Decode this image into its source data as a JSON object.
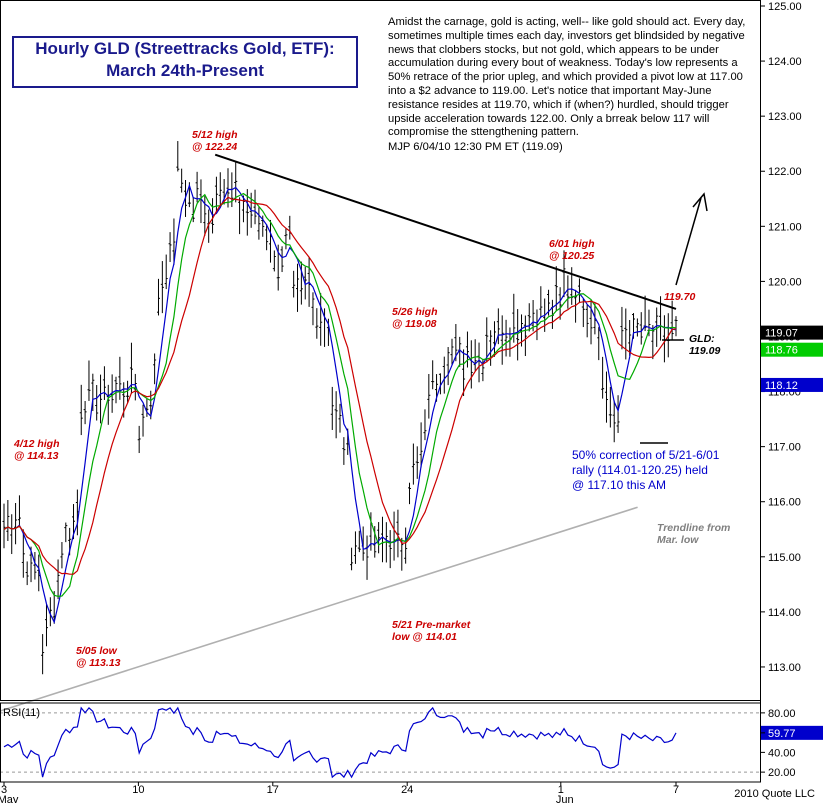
{
  "title": {
    "line1": "Hourly GLD (Streettracks Gold, ETF):",
    "line2": "March 24th-Present"
  },
  "commentary": {
    "text": "Amidst the carnage, gold is acting, well-- like gold should act.  Every day, sometimes multiple times each day, investors get blindsided by negative news that clobbers stocks, but not gold, which appears to be under accumulation during every bout of weakness. Today's low represents a 50% retrace of the prior upleg, and which provided a pivot low at 117.00 into a $2 advance to 119.00. Let's notice that important May-June resistance resides at 119.70, which if (when?) hurdled, should trigger upside acceleration towards 122.00.  Only a brreak below 117 will compromise the sttengthening pattern.",
    "signature": "MJP  6/04/10  12:30 PM ET  (119.09)"
  },
  "annotations": {
    "high_0412": [
      "4/12 high",
      "@ 114.13"
    ],
    "low_0505": [
      "5/05 low",
      "@ 113.13"
    ],
    "high_0512": [
      "5/12 high",
      "@ 122.24"
    ],
    "high_0526": [
      "5/26 high",
      "@ 119.08"
    ],
    "low_0521": [
      "5/21 Pre-market",
      "low @ 114.01"
    ],
    "high_0601": [
      "6/01 high",
      "@ 120.25"
    ],
    "resistance": "119.70",
    "gld_label": [
      "GLD:",
      "119.09"
    ],
    "trendline": [
      "Trendline from",
      "Mar. low"
    ],
    "correction": [
      "50% correction of 5/21-6/01",
      "rally (114.01-120.25) held",
      "@ 117.10 this AM"
    ]
  },
  "copyright": "2010 Quote LLC",
  "rsi_label": "RSI(11)",
  "colors": {
    "background": "#ffffff",
    "candles": "#000000",
    "ma_fast": "#0000cc",
    "ma_mid": "#00aa00",
    "ma_slow": "#cc0000",
    "trendline": "#000000",
    "support_line": "#b0b0b0",
    "annotation": "#cc0000",
    "note_blue": "#0000cc",
    "title": "#1a1a8c",
    "last_price_bg": "#000000",
    "ma_mid_bg": "#00cc00",
    "ma_slow_bg": "#cc0000"
  },
  "chart_data": {
    "type": "candlestick",
    "price_axis": {
      "min": 112.4,
      "max": 125.0,
      "ticks": [
        "125.00",
        "124.00",
        "123.00",
        "122.00",
        "121.00",
        "120.00",
        "119.00",
        "118.00",
        "117.00",
        "116.00",
        "115.00",
        "114.00",
        "113.00"
      ]
    },
    "price_tags": [
      {
        "value": 119.07,
        "label": "119.07",
        "style": "last"
      },
      {
        "value": 118.76,
        "label": "118.76",
        "style": "green"
      },
      {
        "value": 118.12,
        "label": "118.12",
        "style": "blue"
      }
    ],
    "x_axis": {
      "start": "2010-05-03",
      "end": "2010-06-07",
      "ticks": [
        {
          "date": "2010-05-03",
          "label": "3"
        },
        {
          "date": "2010-05-10",
          "label": "10"
        },
        {
          "date": "2010-05-17",
          "label": "17"
        },
        {
          "date": "2010-05-24",
          "label": "24"
        },
        {
          "date": "2010-06-01",
          "label": "1"
        },
        {
          "date": "2010-06-07",
          "label": "7"
        }
      ],
      "month_labels": [
        {
          "date": "2010-05-03",
          "label": "May"
        },
        {
          "date": "2010-06-01",
          "label": "Jun"
        }
      ]
    },
    "price_path": [
      [
        "2010-05-03",
        115.5
      ],
      [
        "2010-05-04",
        115.8
      ],
      [
        "2010-05-04",
        115.0
      ],
      [
        "2010-05-05",
        114.6
      ],
      [
        "2010-05-05",
        113.4
      ],
      [
        "2010-05-06",
        114.8
      ],
      [
        "2010-05-06",
        115.2
      ],
      [
        "2010-05-07",
        116.0
      ],
      [
        "2010-05-07",
        117.8
      ],
      [
        "2010-05-10",
        118.2
      ],
      [
        "2010-05-10",
        117.2
      ],
      [
        "2010-05-11",
        118.5
      ],
      [
        "2010-05-11",
        119.6
      ],
      [
        "2010-05-12",
        121.0
      ],
      [
        "2010-05-12",
        122.0
      ],
      [
        "2010-05-13",
        121.2
      ],
      [
        "2010-05-13",
        121.6
      ],
      [
        "2010-05-14",
        121.0
      ],
      [
        "2010-05-14",
        121.9
      ],
      [
        "2010-05-17",
        120.8
      ],
      [
        "2010-05-17",
        120.2
      ],
      [
        "2010-05-18",
        120.9
      ],
      [
        "2010-05-18",
        119.6
      ],
      [
        "2010-05-19",
        120.0
      ],
      [
        "2010-05-19",
        119.6
      ],
      [
        "2010-05-20",
        119.2
      ],
      [
        "2010-05-20",
        117.8
      ],
      [
        "2010-05-21",
        116.8
      ],
      [
        "2010-05-21",
        115.2
      ],
      [
        "2010-05-24",
        115.3
      ],
      [
        "2010-05-24",
        116.2
      ],
      [
        "2010-05-25",
        117.2
      ],
      [
        "2010-05-25",
        117.9
      ],
      [
        "2010-05-26",
        118.6
      ],
      [
        "2010-05-26",
        118.9
      ],
      [
        "2010-05-27",
        118.5
      ],
      [
        "2010-05-27",
        118.7
      ],
      [
        "2010-05-28",
        118.6
      ],
      [
        "2010-05-28",
        119.0
      ],
      [
        "2010-06-01",
        119.6
      ],
      [
        "2010-06-01",
        120.1
      ],
      [
        "2010-06-02",
        119.7
      ],
      [
        "2010-06-02",
        119.8
      ],
      [
        "2010-06-03",
        119.2
      ],
      [
        "2010-06-03",
        118.3
      ],
      [
        "2010-06-04",
        117.3
      ],
      [
        "2010-06-04",
        119.07
      ]
    ],
    "series": [
      {
        "name": "RSI(11)",
        "axis_ticks": [
          "80.00",
          "59.77",
          "40.00",
          "20.00"
        ],
        "min": 10,
        "max": 90,
        "last": 59.77
      }
    ],
    "trendlines": [
      {
        "from": [
          "2010-05-14",
          122.3
        ],
        "to": [
          "2010-06-07",
          119.5
        ],
        "color": "black"
      },
      {
        "from": [
          "2010-05-01",
          112.0
        ],
        "to": [
          "2010-06-05",
          115.9
        ],
        "color": "gray"
      }
    ],
    "grid": false
  }
}
